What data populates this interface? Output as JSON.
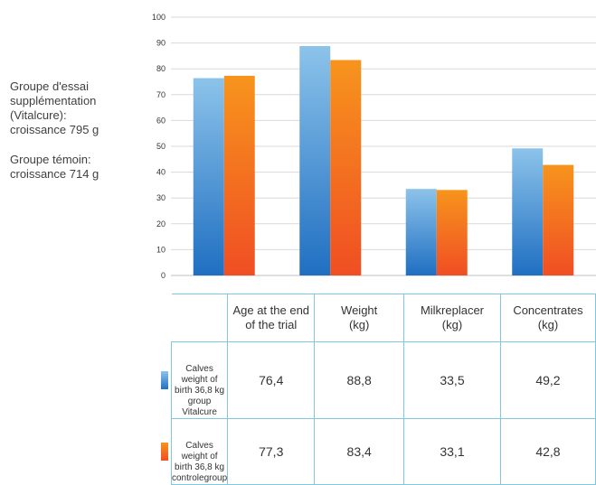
{
  "side_notes": [
    "Groupe d'essai\nsupplémentation\n(Vitalcure):\ncroissance 795 g",
    "Groupe témoin:\ncroissance 714 g"
  ],
  "chart_data": {
    "type": "bar",
    "categories": [
      "Age at the end of the trial",
      "Weight (kg)",
      "Milkreplacer (kg)",
      "Concentrates (kg)"
    ],
    "series": [
      {
        "name": "Calves weight of birth 36,8 kg group Vitalcure",
        "values": [
          76.4,
          88.8,
          33.5,
          49.2
        ],
        "colors": [
          "#8cc3ea",
          "#1f6fc2"
        ]
      },
      {
        "name": "Calves weight of birth 36,8 kg controlegroup",
        "values": [
          77.3,
          83.4,
          33.1,
          42.8
        ],
        "colors": [
          "#f7941d",
          "#f04e23"
        ]
      }
    ],
    "ylim": [
      0,
      100
    ],
    "yticks": [
      "0",
      "10",
      "20",
      "30",
      "40",
      "50",
      "60",
      "70",
      "80",
      "90",
      "100"
    ],
    "grid": true,
    "legend": "table-left"
  },
  "table": {
    "headers": [
      "Age at the end\nof the trial",
      "Weight\n(kg)",
      "Milkreplacer\n(kg)",
      "Concentrates\n(kg)"
    ],
    "rows": [
      {
        "label": "Calves weight of birth 36,8 kg\ngroup Vitalcure",
        "values": [
          "76,4",
          "88,8",
          "33,5",
          "49,2"
        ]
      },
      {
        "label": "Calves weight of birth 36,8 kg\ncontrolegroup",
        "values": [
          "77,3",
          "83,4",
          "33,1",
          "42,8"
        ]
      }
    ]
  }
}
